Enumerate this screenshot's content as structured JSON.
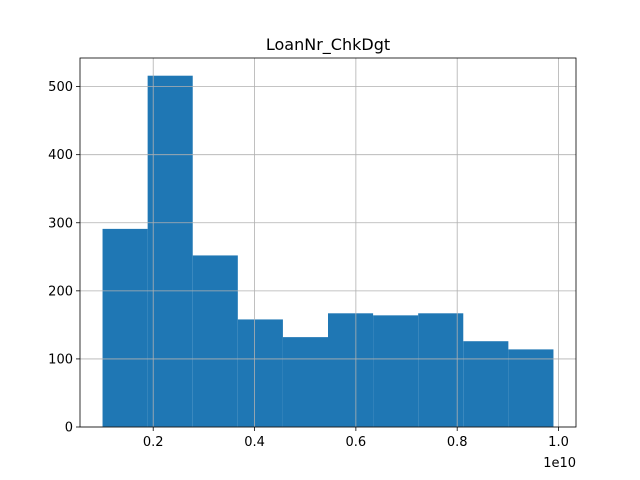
{
  "chart_data": {
    "type": "bar",
    "title": "LoanNr_ChkDgt",
    "x_offset_label": "1e10",
    "bin_edges": [
      0.1,
      0.189,
      0.278,
      0.367,
      0.456,
      0.545,
      0.634,
      0.723,
      0.812,
      0.901,
      0.99
    ],
    "values": [
      291,
      516,
      252,
      158,
      132,
      167,
      164,
      167,
      126,
      114
    ],
    "xlim": [
      0.0555,
      1.0345
    ],
    "ylim": [
      0,
      542
    ],
    "x_ticks": [
      0.2,
      0.4,
      0.6,
      0.8,
      1.0
    ],
    "x_tick_labels": [
      "0.2",
      "0.4",
      "0.6",
      "0.8",
      "1.0"
    ],
    "y_ticks": [
      0,
      100,
      200,
      300,
      400,
      500
    ],
    "y_tick_labels": [
      "0",
      "100",
      "200",
      "300",
      "400",
      "500"
    ],
    "bar_color": "#1f77b4",
    "grid": true,
    "legend": "none"
  }
}
